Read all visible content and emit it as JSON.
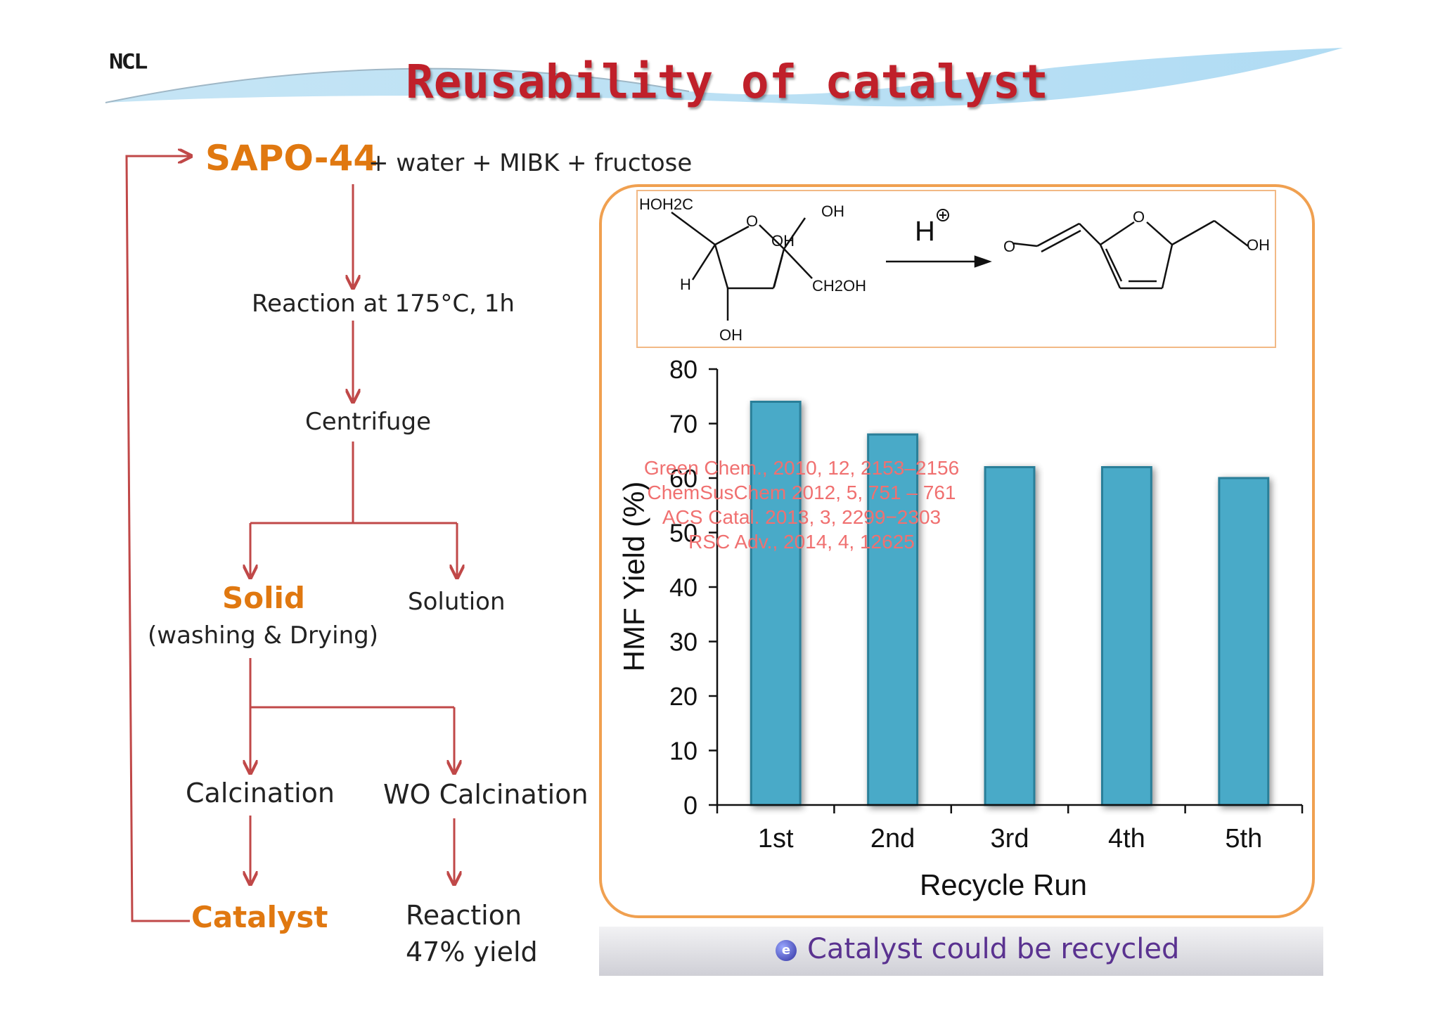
{
  "slide": {
    "logo": "NCL",
    "title": "Reusability of catalyst"
  },
  "flowchart": {
    "start_catalyst": "SAPO-44",
    "start_rest": "+ water + MIBK + fructose",
    "reaction": "Reaction at 175°C, 1h",
    "centrifuge": "Centrifuge",
    "solid": "Solid",
    "washing": "(washing & Drying)",
    "solution": "Solution",
    "calcination": "Calcination",
    "wo_calcination": "WO Calcination",
    "catalyst": "Catalyst",
    "reaction_end": "Reaction",
    "yield_end": "47% yield"
  },
  "scheme": {
    "fructose_labels": [
      "HOH2C",
      "O",
      "OH",
      "OH",
      "H",
      "CH2OH",
      "OH"
    ],
    "catalyst_label": "H",
    "hmf_labels": [
      "O",
      "O",
      "OH"
    ]
  },
  "references": [
    "Green Chem., 2010, 12, 2153–2156",
    "ChemSusChem 2012, 5, 751 – 761",
    "ACS Catal. 2013, 3, 2299−2303",
    "RSC Adv., 2014, 4, 12625"
  ],
  "colors": {
    "bar_fill": "#4aaac8",
    "bar_stroke": "#2b7f99",
    "arrow": "#c04848",
    "title": "#c0202a",
    "highlight": "#e07810"
  },
  "chart_data": {
    "type": "bar",
    "categories": [
      "1st",
      "2nd",
      "3rd",
      "4th",
      "5th"
    ],
    "values": [
      74,
      68,
      62,
      62,
      60
    ],
    "xlabel": "Recycle Run",
    "ylabel": "HMF Yield (%)",
    "ylim": [
      0,
      80
    ],
    "yticks": [
      0,
      10,
      20,
      30,
      40,
      50,
      60,
      70,
      80
    ],
    "grid": false,
    "legend": "none"
  },
  "banner": {
    "text": "Catalyst could be recycled",
    "icon": "e"
  }
}
